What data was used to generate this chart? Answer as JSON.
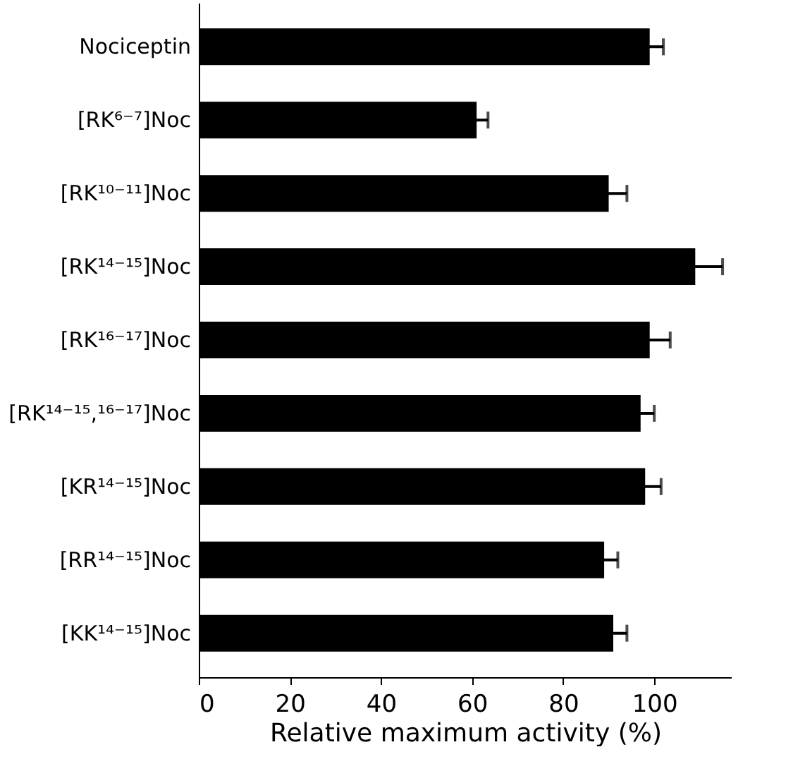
{
  "chart_data": {
    "type": "bar",
    "orientation": "horizontal",
    "xlabel": "Relative maximum activity (%)",
    "categories": [
      "Nociceptin",
      "[RK⁶⁻⁷]Noc",
      "[RK¹⁰⁻¹¹]Noc",
      "[RK¹⁴⁻¹⁵]Noc",
      "[RK¹⁶⁻¹⁷]Noc",
      "[RK¹⁴⁻¹⁵,¹⁶⁻¹⁷]Noc",
      "[KR¹⁴⁻¹⁵]Noc",
      "[RR¹⁴⁻¹⁵]Noc",
      "[KK¹⁴⁻¹⁵]Noc"
    ],
    "values": [
      99,
      61,
      90,
      109,
      99,
      97,
      98,
      89,
      91
    ],
    "errors": [
      3,
      2.5,
      4,
      6,
      4.5,
      3,
      3.5,
      3,
      3
    ],
    "color": "#000000",
    "xlim": [
      0,
      117
    ],
    "xticks": [
      0,
      20,
      40,
      60,
      80,
      100
    ],
    "grid": false
  }
}
